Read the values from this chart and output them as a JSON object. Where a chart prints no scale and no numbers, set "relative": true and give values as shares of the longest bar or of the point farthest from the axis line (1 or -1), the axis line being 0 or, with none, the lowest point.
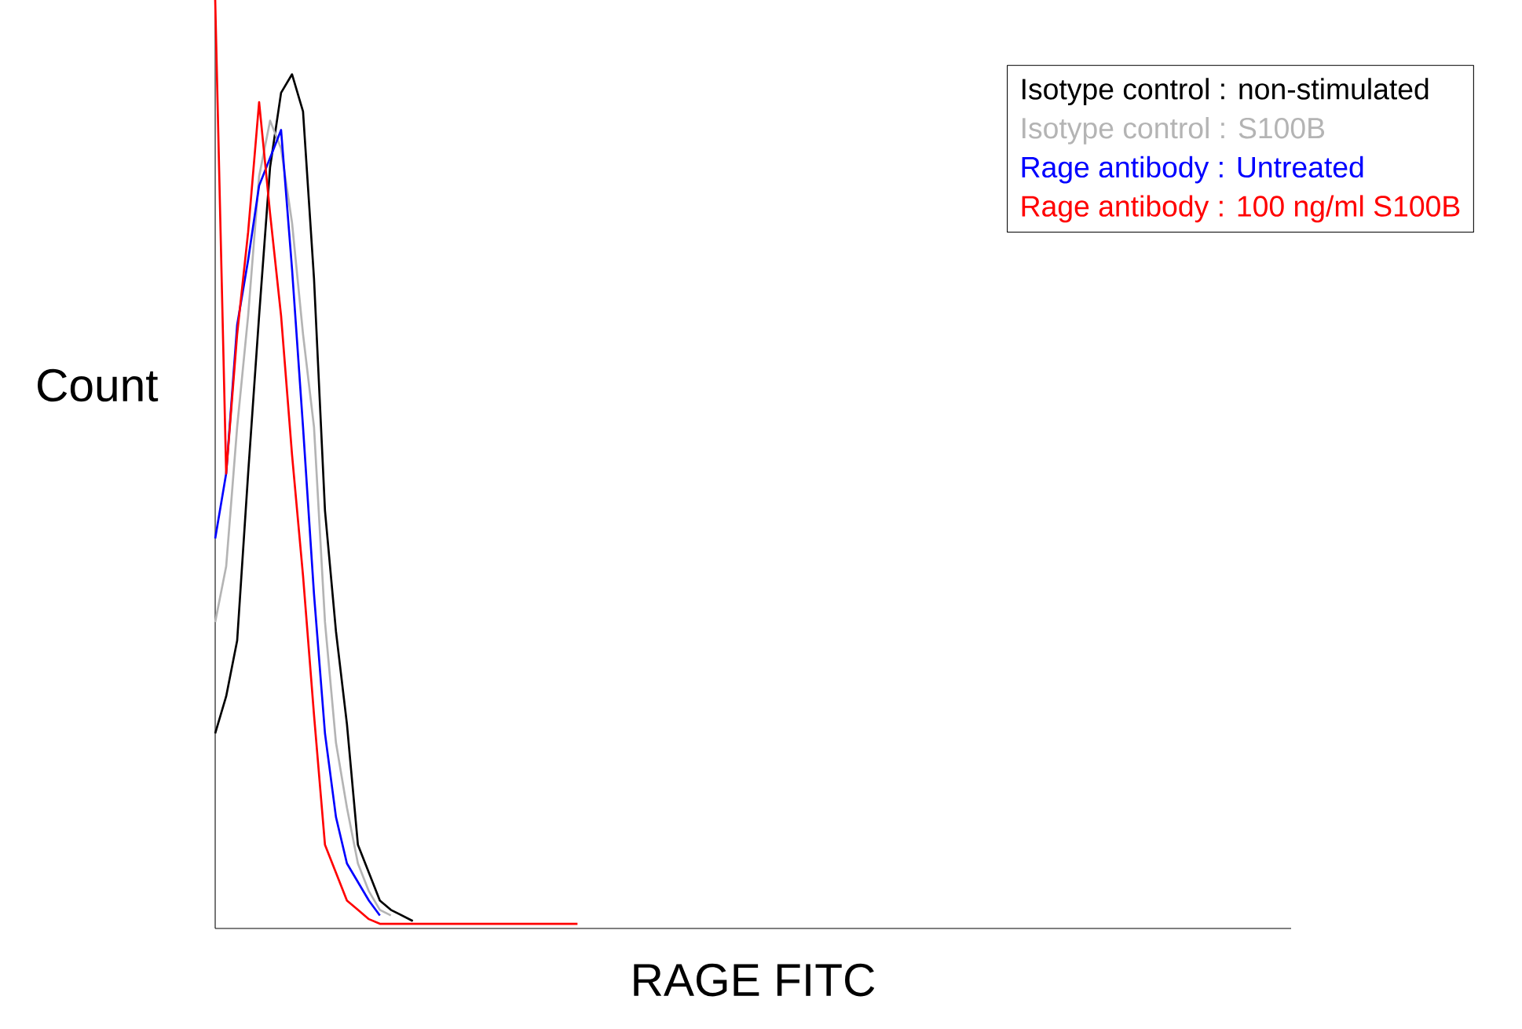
{
  "chart_data": {
    "type": "line",
    "relative": true,
    "xlabel": "RAGE FITC",
    "ylabel": "Count",
    "legend": "top right",
    "categories": [
      null,
      null,
      null,
      null,
      null,
      null,
      null,
      null,
      null,
      null,
      null,
      null,
      null,
      null,
      null,
      null,
      null,
      null,
      null,
      null,
      null,
      null,
      null,
      null,
      null,
      null,
      null,
      null,
      null,
      null,
      null,
      null,
      null,
      null,
      null,
      null,
      null,
      null,
      null,
      null,
      null,
      null,
      null,
      null,
      null,
      null,
      null,
      null,
      null,
      null,
      null,
      null,
      null,
      null,
      null,
      null,
      null,
      null,
      null,
      null,
      null,
      null,
      null,
      null,
      null,
      null,
      null,
      null,
      null,
      null,
      null,
      null,
      null,
      null,
      null,
      null,
      null,
      null,
      null,
      null,
      null,
      null,
      null,
      null,
      null,
      null,
      null,
      null,
      null,
      null,
      null,
      null,
      null,
      null,
      null,
      null,
      null,
      null,
      null
    ],
    "series": [
      {
        "name": "Isotype control : non-stimulated",
        "color": "#000000",
        "values": [
          0.21,
          0.25,
          0.31,
          0.49,
          0.66,
          0.82,
          0.9,
          0.92,
          0.88,
          0.7,
          0.45,
          0.32,
          0.22,
          0.09,
          0.06,
          0.03,
          0.02,
          0.014,
          0.008,
          null,
          null,
          null,
          null,
          null,
          null,
          null,
          null,
          null,
          null,
          null,
          null,
          null,
          null,
          null,
          null,
          null,
          null,
          null,
          null,
          null,
          null,
          null,
          null,
          null,
          null,
          null,
          null,
          null,
          null,
          null,
          null,
          null,
          null,
          null,
          null,
          null,
          null,
          null,
          null,
          null,
          null,
          null,
          null,
          null,
          null,
          null,
          null,
          null,
          null,
          null,
          null,
          null,
          null,
          null,
          null,
          null,
          null,
          null,
          null,
          null,
          null,
          null,
          null,
          null,
          null,
          null,
          null,
          null,
          null,
          null,
          null,
          null,
          null,
          null,
          null,
          null,
          null,
          null,
          null
        ]
      },
      {
        "name": "Isotype control : S100B",
        "color": "#b4b4b4",
        "values": [
          0.33,
          0.39,
          0.54,
          0.66,
          0.81,
          0.87,
          0.84,
          0.76,
          0.64,
          0.54,
          0.33,
          0.2,
          0.13,
          0.07,
          0.04,
          0.02,
          0.014,
          null,
          null,
          null,
          null,
          null,
          null,
          null,
          null,
          null,
          null,
          null,
          null,
          null,
          null,
          null,
          null,
          null,
          null,
          null,
          null,
          null,
          null,
          null,
          null,
          null,
          null,
          null,
          null,
          null,
          null,
          null,
          null,
          null,
          null,
          null,
          null,
          null,
          null,
          null,
          null,
          null,
          null,
          null,
          null,
          null,
          null,
          null,
          null,
          null,
          null,
          null,
          null,
          null,
          null,
          null,
          null,
          null,
          null,
          null,
          null,
          null,
          null,
          null,
          null,
          null,
          null,
          null,
          null,
          null,
          null,
          null,
          null,
          null,
          null,
          null,
          null,
          null,
          null,
          null,
          null,
          null,
          null
        ]
      },
      {
        "name": "Rage antibody : Untreated",
        "color": "#0000ff",
        "values": [
          0.42,
          0.49,
          0.65,
          0.72,
          0.8,
          0.83,
          0.86,
          0.71,
          0.54,
          0.36,
          0.21,
          0.12,
          0.07,
          0.05,
          0.03,
          0.014,
          null,
          null,
          null,
          null,
          null,
          null,
          null,
          null,
          null,
          null,
          null,
          null,
          null,
          null,
          null,
          null,
          null,
          null,
          null,
          null,
          null,
          null,
          null,
          null,
          null,
          null,
          null,
          null,
          null,
          null,
          null,
          null,
          null,
          null,
          null,
          null,
          null,
          null,
          null,
          null,
          null,
          null,
          null,
          null,
          null,
          null,
          null,
          null,
          null,
          null,
          null,
          null,
          null,
          null,
          null,
          null,
          null,
          null,
          null,
          null,
          null,
          null,
          null,
          null,
          null,
          null,
          null,
          null,
          null,
          null,
          null,
          null,
          null,
          null,
          null,
          null,
          null,
          null,
          null,
          null,
          null,
          null,
          null
        ]
      },
      {
        "name": "Rage antibody : 100 ng/ml S100B",
        "color": "#ff0000",
        "values": [
          1,
          0.49,
          0.64,
          0.75,
          0.89,
          0.77,
          0.66,
          0.51,
          0.38,
          0.23,
          0.09,
          0.06,
          0.03,
          0.02,
          0.01,
          0.005,
          0.005,
          0.005,
          0.005,
          0.005,
          0.005,
          0.005,
          0.005,
          0.005,
          0.005,
          0.005,
          0.005,
          0.005,
          0.005,
          0.005,
          0.005,
          0.005,
          0.005,
          0.005,
          null,
          null,
          null,
          null,
          null,
          null,
          null,
          null,
          null,
          null,
          null,
          null,
          null,
          null,
          null,
          null,
          null,
          null,
          null,
          null,
          null,
          null,
          null,
          null,
          null,
          null,
          null,
          null,
          null,
          null,
          null,
          null,
          null,
          null,
          null,
          null,
          null,
          null,
          null,
          null,
          null,
          null,
          null,
          null,
          null,
          null,
          null,
          null,
          null,
          null,
          null,
          null,
          null,
          null,
          null,
          null,
          null,
          null,
          null,
          null,
          null,
          null,
          null,
          null,
          null
        ]
      }
    ]
  }
}
